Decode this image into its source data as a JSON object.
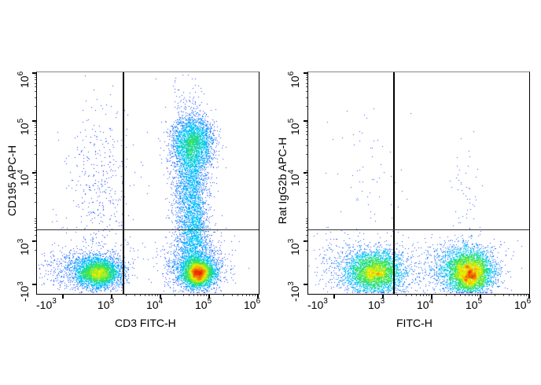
{
  "chart_data": [
    {
      "type": "scatter",
      "subtype": "flow-cytometry-density-pseudocolor",
      "title": "",
      "xlabel": "CD3 FITC-H",
      "ylabel": "CD195 APC-H",
      "x_ticks": [
        "-10^3",
        "10^3",
        "10^4",
        "10^5",
        "10^6"
      ],
      "y_ticks": [
        "-10^3",
        "10^3",
        "10^4",
        "10^5",
        "10^6"
      ],
      "x_scale": "biexponential",
      "y_scale": "biexponential",
      "quadrant_gate": {
        "x": 1800,
        "y": 1400
      },
      "populations": [
        {
          "name": "CD3- CD195-",
          "x_center": 700,
          "y_center": -300,
          "density": "medium",
          "peak_color": "yellow-green"
        },
        {
          "name": "CD3+ CD195-",
          "x_center": 55000,
          "y_center": -300,
          "density": "high",
          "peak_color": "red"
        },
        {
          "name": "CD3+ CD195+",
          "x_center": 50000,
          "y_center": 30000,
          "density": "medium-high",
          "peak_color": "yellow-green"
        },
        {
          "name": "CD3- CD195+ scatter",
          "x_center": 800,
          "y_center": 5000,
          "density": "low",
          "peak_color": "blue"
        }
      ],
      "grid": false,
      "legend": null
    },
    {
      "type": "scatter",
      "subtype": "flow-cytometry-density-pseudocolor",
      "title": "",
      "xlabel": "FITC-H",
      "ylabel": "Rat IgG2b APC-H",
      "x_ticks": [
        "-10^3",
        "10^3",
        "10^4",
        "10^5",
        "10^6"
      ],
      "y_ticks": [
        "-10^3",
        "10^3",
        "10^4",
        "10^5",
        "10^6"
      ],
      "x_scale": "biexponential",
      "y_scale": "biexponential",
      "quadrant_gate": {
        "x": 1800,
        "y": 1400
      },
      "populations": [
        {
          "name": "FITC- isotype-",
          "x_center": 700,
          "y_center": -100,
          "density": "medium",
          "peak_color": "cyan-green"
        },
        {
          "name": "FITC+ isotype-",
          "x_center": 55000,
          "y_center": -150,
          "density": "high",
          "peak_color": "red"
        }
      ],
      "grid": false,
      "legend": null
    }
  ],
  "panels": [
    {
      "xlabel": "CD3 FITC-H",
      "ylabel": "CD195 APC-H",
      "x_ticks": [
        {
          "base": "-10",
          "exp": "3"
        },
        {
          "base": "10",
          "exp": "3"
        },
        {
          "base": "10",
          "exp": "4"
        },
        {
          "base": "10",
          "exp": "5"
        },
        {
          "base": "10",
          "exp": "6"
        }
      ],
      "y_ticks": [
        {
          "base": "-10",
          "exp": "3"
        },
        {
          "base": "10",
          "exp": "3"
        },
        {
          "base": "10",
          "exp": "4"
        },
        {
          "base": "10",
          "exp": "5"
        },
        {
          "base": "10",
          "exp": "6"
        }
      ]
    },
    {
      "xlabel": "FITC-H",
      "ylabel": "Rat IgG2b APC-H",
      "x_ticks": [
        {
          "base": "-10",
          "exp": "3"
        },
        {
          "base": "10",
          "exp": "3"
        },
        {
          "base": "10",
          "exp": "4"
        },
        {
          "base": "10",
          "exp": "5"
        },
        {
          "base": "10",
          "exp": "6"
        }
      ],
      "y_ticks": [
        {
          "base": "-10",
          "exp": "3"
        },
        {
          "base": "10",
          "exp": "3"
        },
        {
          "base": "10",
          "exp": "4"
        },
        {
          "base": "10",
          "exp": "5"
        },
        {
          "base": "10",
          "exp": "6"
        }
      ]
    }
  ]
}
